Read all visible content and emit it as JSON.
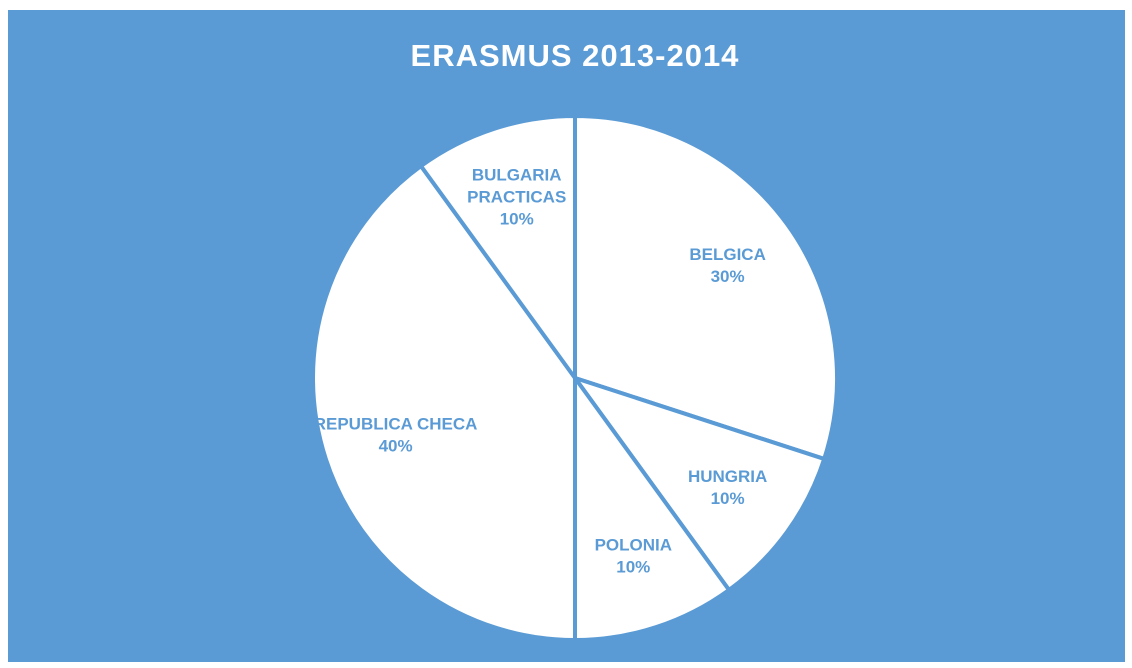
{
  "chart_data": {
    "type": "pie",
    "title": "ERASMUS 2013-2014",
    "categories": [
      "BELGICA",
      "HUNGRIA",
      "POLONIA",
      "REPUBLICA CHECA",
      "BULGARIA PRACTICAS"
    ],
    "values": [
      30,
      10,
      10,
      40,
      10
    ],
    "value_labels": [
      "30%",
      "10%",
      "10%",
      "40%",
      "10%"
    ],
    "background": "#5b9bd5",
    "color": "#ffffff",
    "label_color": "#5b9bd5"
  }
}
